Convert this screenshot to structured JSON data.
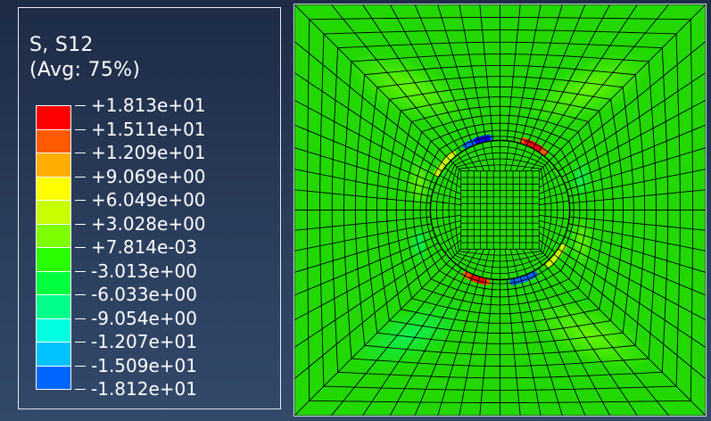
{
  "legend": {
    "title": "S, S12",
    "subtitle": "(Avg: 75%)",
    "levels": [
      {
        "label": "+1.813e+01",
        "color": "#ff0000"
      },
      {
        "label": "+1.511e+01",
        "color": "#ff5a00"
      },
      {
        "label": "+1.209e+01",
        "color": "#ffae00"
      },
      {
        "label": "+9.069e+00",
        "color": "#ffff00"
      },
      {
        "label": "+6.049e+00",
        "color": "#c8ff00"
      },
      {
        "label": "+3.028e+00",
        "color": "#7dff00"
      },
      {
        "label": "+7.814e-03",
        "color": "#2aff00"
      },
      {
        "label": "-3.013e+00",
        "color": "#00ff3d"
      },
      {
        "label": "-6.033e+00",
        "color": "#00ff8a"
      },
      {
        "label": "-9.054e+00",
        "color": "#00ffe1"
      },
      {
        "label": "-1.207e+01",
        "color": "#00c2ff"
      },
      {
        "label": "-1.509e+01",
        "color": "#0066ff"
      },
      {
        "label": "-1.812e+01",
        "color": "#0000ff"
      }
    ]
  },
  "colors": {
    "mesh_base": "#22d800",
    "mesh_lines": "#000000",
    "panel_border": "#e6ebf2"
  }
}
